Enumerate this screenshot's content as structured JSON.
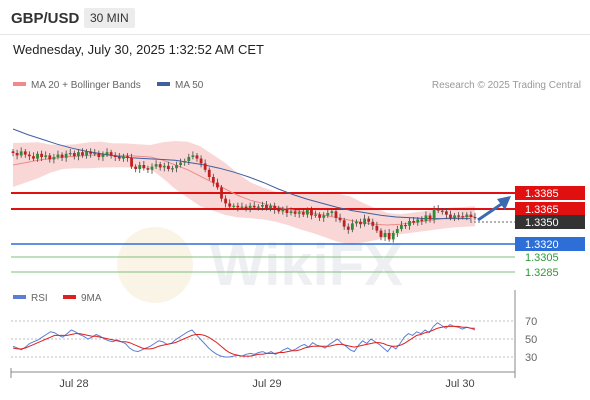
{
  "header": {
    "symbol": "GBP/USD",
    "timeframe": "30 MIN",
    "datetime": "Wednesday, July 30, 2025 1:32:52 AM CET"
  },
  "legend": {
    "ma20": {
      "label": "MA 20 + Bollinger Bands",
      "color": "#f08a8a"
    },
    "ma50": {
      "label": "MA 50",
      "color": "#3f5f9f"
    },
    "rsi": {
      "label": "RSI",
      "color": "#5b7fd6"
    },
    "ma9": {
      "label": "9MA",
      "color": "#e02020"
    }
  },
  "credit": "Research © 2025 Trading Central",
  "watermark": "WikiFX",
  "chart_data": {
    "type": "candlestick",
    "x_labels": [
      "Jul 28",
      "Jul 29",
      "Jul 30"
    ],
    "price_levels": [
      {
        "value": 1.3385,
        "label": "1.3385",
        "kind": "resistance",
        "color": "#e01010"
      },
      {
        "value": 1.3365,
        "label": "1.3365",
        "kind": "resistance",
        "color": "#e01010"
      },
      {
        "value": 1.335,
        "label": "1.3350",
        "kind": "current",
        "color": "#333333"
      },
      {
        "value": 1.332,
        "label": "1.3320",
        "kind": "pivot",
        "color": "#2d6fd6"
      },
      {
        "value": 1.3305,
        "label": "1.3305",
        "kind": "support",
        "color": "#2e9a3a"
      },
      {
        "value": 1.3285,
        "label": "1.3285",
        "kind": "support",
        "color": "#2e9a3a"
      }
    ],
    "price_close": [
      1.3435,
      1.3432,
      1.3437,
      1.3433,
      1.3431,
      1.3428,
      1.3434,
      1.343,
      1.3432,
      1.3427,
      1.343,
      1.3433,
      1.3429,
      1.3434,
      1.3435,
      1.3431,
      1.3436,
      1.3432,
      1.3437,
      1.3434,
      1.3435,
      1.343,
      1.3433,
      1.3436,
      1.3432,
      1.343,
      1.3428,
      1.3431,
      1.3429,
      1.3418,
      1.3415,
      1.342,
      1.3416,
      1.3414,
      1.3418,
      1.3421,
      1.3417,
      1.3419,
      1.3415,
      1.3416,
      1.342,
      1.3423,
      1.3425,
      1.343,
      1.3432,
      1.3428,
      1.3422,
      1.3414,
      1.3405,
      1.3398,
      1.3392,
      1.3378,
      1.3372,
      1.3368,
      1.3369,
      1.3367,
      1.3368,
      1.3366,
      1.3369,
      1.3367,
      1.3368,
      1.337,
      1.3366,
      1.3369,
      1.3364,
      1.3362,
      1.3365,
      1.336,
      1.3362,
      1.3359,
      1.3361,
      1.3358,
      1.3364,
      1.3357,
      1.3358,
      1.3354,
      1.3357,
      1.336,
      1.3362,
      1.3354,
      1.3351,
      1.3343,
      1.3339,
      1.3347,
      1.3349,
      1.3346,
      1.3353,
      1.3349,
      1.3344,
      1.3338,
      1.333,
      1.3335,
      1.3327,
      1.3335,
      1.334,
      1.3345,
      1.3344,
      1.335,
      1.3348,
      1.3352,
      1.335,
      1.3357,
      1.3352,
      1.3365,
      1.3363,
      1.3362,
      1.3358,
      1.3354,
      1.3357,
      1.3356,
      1.3355,
      1.3358,
      1.3355,
      1.3354
    ],
    "ma20": [
      1.342,
      1.3423,
      1.3426,
      1.3428,
      1.343,
      1.3431,
      1.3432,
      1.3433,
      1.3432,
      1.3432,
      1.3431,
      1.343,
      1.3426,
      1.342,
      1.3414,
      1.3406,
      1.3398,
      1.339,
      1.3382,
      1.3376,
      1.3372,
      1.3368,
      1.3365,
      1.3362,
      1.336,
      1.3357,
      1.3354,
      1.3351,
      1.3348,
      1.3346,
      1.3345,
      1.3346,
      1.3348,
      1.335,
      1.3352,
      1.3354,
      1.3355,
      1.3356
    ],
    "ma50": [
      1.3465,
      1.3458,
      1.3452,
      1.3446,
      1.3441,
      1.3437,
      1.3434,
      1.3431,
      1.3429,
      1.3428,
      1.3427,
      1.3426,
      1.3423,
      1.342,
      1.3416,
      1.3411,
      1.3405,
      1.3398,
      1.339,
      1.3383,
      1.3377,
      1.3372,
      1.3367,
      1.3363,
      1.336,
      1.3357,
      1.3355,
      1.3354,
      1.3353,
      1.3353,
      1.3353,
      1.3353
    ],
    "bb_width": [
      22,
      20,
      18,
      14,
      12,
      12,
      13,
      13,
      12,
      12,
      12,
      12,
      18,
      24,
      28,
      30,
      28,
      26,
      22,
      18,
      16,
      15,
      16,
      18,
      20,
      22,
      24,
      24,
      20,
      16,
      12,
      10,
      10,
      10,
      10,
      10,
      10,
      10
    ],
    "rsi_ticks": [
      30,
      50,
      70
    ],
    "rsi": [
      42,
      40,
      38,
      41,
      45,
      47,
      49,
      52,
      55,
      58,
      57,
      54,
      52,
      56,
      60,
      58,
      55,
      53,
      50,
      52,
      55,
      53,
      50,
      48,
      47,
      49,
      47,
      45,
      40,
      37,
      36,
      38,
      40,
      42,
      45,
      48,
      47,
      44,
      45,
      49,
      52,
      55,
      58,
      60,
      55,
      50,
      45,
      40,
      36,
      33,
      31,
      30,
      30,
      31,
      32,
      31,
      33,
      34,
      33,
      35,
      36,
      34,
      36,
      33,
      35,
      38,
      40,
      37,
      39,
      42,
      44,
      41,
      46,
      43,
      42,
      40,
      44,
      47,
      50,
      45,
      42,
      38,
      36,
      43,
      48,
      45,
      50,
      47,
      44,
      40,
      36,
      42,
      39,
      45,
      52,
      56,
      54,
      58,
      56,
      60,
      57,
      64,
      68,
      65,
      62,
      66,
      64,
      63,
      61,
      63,
      62,
      60
    ],
    "rsi_ma9": [
      40,
      39,
      39,
      40,
      42,
      44,
      46,
      48,
      50,
      52,
      54,
      54,
      54,
      54,
      55,
      56,
      56,
      55,
      54,
      53,
      53,
      52,
      51,
      50,
      49,
      48,
      47,
      47,
      46,
      44,
      42,
      40,
      39,
      39,
      40,
      42,
      43,
      44,
      45,
      46,
      48,
      50,
      52,
      54,
      55,
      55,
      54,
      52,
      49,
      46,
      42,
      38,
      35,
      33,
      32,
      31,
      31,
      31,
      32,
      33,
      33,
      34,
      34,
      34,
      35,
      35,
      36,
      37,
      37,
      38,
      40,
      41,
      42,
      42,
      42,
      42,
      42,
      43,
      44,
      44,
      43,
      42,
      41,
      42,
      43,
      44,
      45,
      46,
      46,
      45,
      43,
      42,
      42,
      43,
      45,
      48,
      51,
      54,
      55,
      57,
      58,
      60,
      62,
      63,
      64,
      64,
      64,
      64,
      63,
      63,
      62,
      62
    ]
  }
}
